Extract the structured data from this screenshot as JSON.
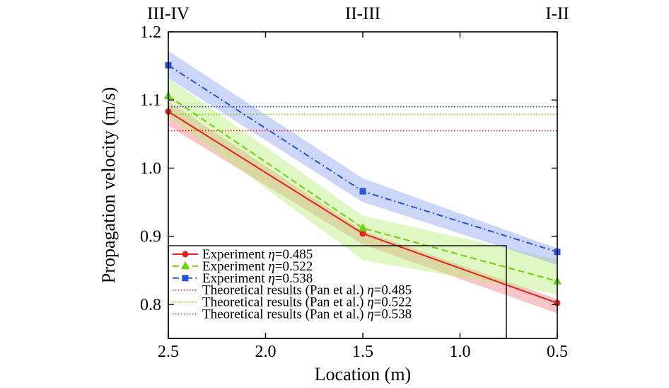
{
  "chart_data": {
    "type": "line",
    "xlabel": "Location (m)",
    "ylabel": "Propagation velocity (m/s)",
    "xlim": [
      2.5,
      0.5
    ],
    "x_reversed": true,
    "ylim": [
      0.75,
      1.2
    ],
    "xticks": [
      {
        "value": 2.5,
        "label": "2.5"
      },
      {
        "value": 2.0,
        "label": "2.0"
      },
      {
        "value": 1.5,
        "label": "1.5"
      },
      {
        "value": 1.0,
        "label": "1.0"
      },
      {
        "value": 0.5,
        "label": "0.5"
      }
    ],
    "yticks": [
      {
        "value": 0.8,
        "label": "0.8"
      },
      {
        "value": 0.9,
        "label": "0.9"
      },
      {
        "value": 1.0,
        "label": "1.0"
      },
      {
        "value": 1.1,
        "label": "1.1"
      },
      {
        "value": 1.2,
        "label": "1.2"
      }
    ],
    "top_labels": [
      {
        "x": 2.5,
        "text": "III-IV"
      },
      {
        "x": 1.5,
        "text": "II-III"
      },
      {
        "x": 0.5,
        "text": "I-II"
      }
    ],
    "grid": false,
    "legend_position": "bottom-left",
    "x": [
      2.5,
      1.5,
      0.5
    ],
    "series": [
      {
        "name_prefix": "Experiment ",
        "name_eta": "η",
        "name_value": "=0.485",
        "values": [
          1.083,
          0.904,
          0.802
        ],
        "band_upper": [
          1.098,
          0.908,
          0.808
        ],
        "band_lower": [
          1.062,
          0.888,
          0.787
        ],
        "color": "#e8221c",
        "band_color": "#f08080",
        "dash": "",
        "marker": "circle"
      },
      {
        "name_prefix": "Experiment ",
        "name_eta": "η",
        "name_value": "=0.522",
        "values": [
          1.106,
          0.912,
          0.834
        ],
        "band_upper": [
          1.132,
          0.93,
          0.866
        ],
        "band_lower": [
          1.076,
          0.865,
          0.815
        ],
        "color": "#6fd20a",
        "band_color": "#b8ee78",
        "dash": "9,5",
        "marker": "triangle"
      },
      {
        "name_prefix": "Experiment ",
        "name_eta": "η",
        "name_value": "=0.538",
        "values": [
          1.151,
          0.966,
          0.877
        ],
        "band_upper": [
          1.172,
          0.985,
          0.882
        ],
        "band_lower": [
          1.132,
          0.95,
          0.858
        ],
        "color": "#2653e0",
        "band_color": "#8da3f0",
        "dash": "9,4,2,4",
        "marker": "square"
      }
    ],
    "reference_lines": [
      {
        "name_prefix": "Theoretical results (Pan et al.) ",
        "name_eta": "η",
        "name_value": "=0.485",
        "value": 1.055,
        "color": "#e8221c"
      },
      {
        "name_prefix": "Theoretical results (Pan et al.) ",
        "name_eta": "η",
        "name_value": "=0.522",
        "value": 1.079,
        "color": "#6fd20a"
      },
      {
        "name_prefix": "Theoretical results (Pan et al.) ",
        "name_eta": "η",
        "name_value": "=0.538",
        "value": 1.09,
        "color": "#2653e0"
      }
    ]
  }
}
